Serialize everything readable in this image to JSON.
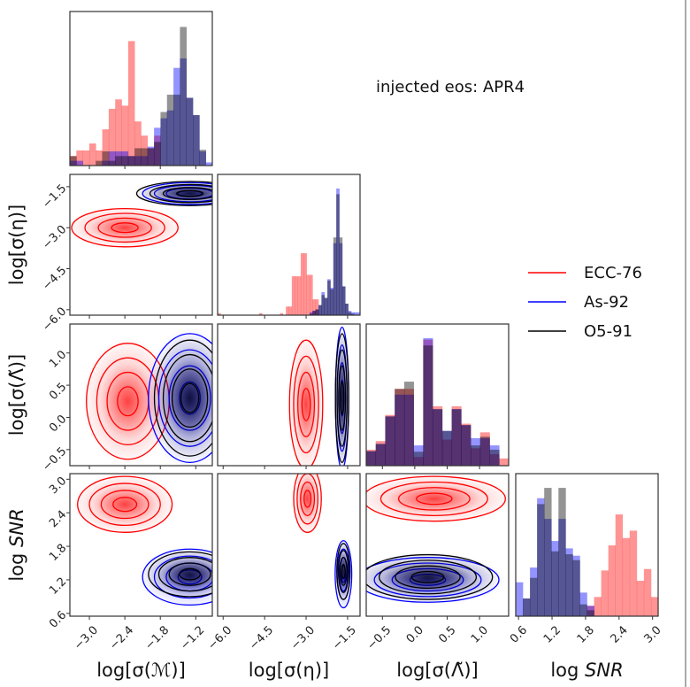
{
  "chart_data": {
    "type": "corner",
    "annotation": "injected eos: APR4",
    "legend": {
      "placement": "right",
      "entries": [
        {
          "name": "ECC-76",
          "color": "#ff0000"
        },
        {
          "name": "As-92",
          "color": "#0000ff"
        },
        {
          "name": "O5-91",
          "color": "#000000"
        }
      ]
    },
    "variables": [
      {
        "key": "M",
        "label": "log[σ(ℳ)]",
        "range": [
          -3.33,
          -0.92
        ],
        "ticks": [
          -3.0,
          -2.4,
          -1.8,
          -1.2
        ],
        "tick_labels": [
          "−3.0",
          "−2.4",
          "−1.8",
          "−1.2"
        ]
      },
      {
        "key": "eta",
        "label": "log[σ(η)]",
        "range": [
          -6.2,
          -1.05
        ],
        "ticks": [
          -6.0,
          -4.5,
          -3.0,
          -1.5
        ],
        "tick_labels": [
          "−6.0",
          "−4.5",
          "−3.0",
          "−1.5"
        ]
      },
      {
        "key": "lam",
        "label": "log[σ(Λ̃)]",
        "range": [
          -0.75,
          1.45
        ],
        "ticks": [
          -0.5,
          0.0,
          0.5,
          1.0
        ],
        "tick_labels": [
          "−0.5",
          "0.0",
          "0.5",
          "1.0"
        ]
      },
      {
        "key": "snr",
        "label_prefix": "log ",
        "label_italic": "SNR",
        "range": [
          0.55,
          3.1
        ],
        "ticks": [
          0.6,
          1.2,
          1.8,
          2.4,
          3.0
        ],
        "tick_labels": [
          "0.6",
          "1.2",
          "1.8",
          "2.4",
          "3.0"
        ]
      }
    ],
    "histograms": {
      "M": {
        "ECC-76": [
          30,
          48,
          48,
          70,
          48,
          115,
          180,
          210,
          190,
          395,
          140,
          95,
          55,
          95,
          0,
          0,
          0,
          0,
          0,
          0,
          0,
          0
        ],
        "As-92": [
          15,
          15,
          0,
          0,
          0,
          15,
          45,
          45,
          45,
          30,
          30,
          30,
          60,
          120,
          150,
          175,
          310,
          340,
          215,
          160,
          45,
          10
        ],
        "O5-91": [
          30,
          0,
          0,
          0,
          15,
          45,
          15,
          30,
          30,
          30,
          55,
          55,
          55,
          75,
          170,
          225,
          225,
          440,
          215,
          160,
          50,
          0
        ]
      },
      "eta": {
        "ECC-76": [
          7,
          0,
          0,
          0,
          0,
          0,
          0,
          0,
          0,
          0,
          0,
          0,
          0,
          0,
          7,
          0,
          0,
          0,
          0,
          0,
          0,
          7,
          0,
          30,
          30,
          135,
          135,
          135,
          215,
          215,
          140,
          140,
          55,
          55,
          0,
          0,
          0,
          0,
          0,
          0,
          0,
          0,
          0,
          0,
          0,
          0,
          0,
          0
        ],
        "As-92": [
          0,
          0,
          0,
          0,
          0,
          0,
          0,
          0,
          0,
          0,
          0,
          0,
          0,
          0,
          0,
          0,
          0,
          0,
          0,
          0,
          0,
          0,
          0,
          0,
          0,
          0,
          0,
          0,
          0,
          0,
          0,
          10,
          15,
          20,
          35,
          80,
          60,
          125,
          95,
          250,
          440,
          250,
          100,
          40,
          15,
          10,
          10,
          10
        ],
        "O5-91": [
          0,
          0,
          0,
          0,
          0,
          0,
          0,
          0,
          0,
          0,
          0,
          0,
          0,
          0,
          0,
          0,
          0,
          0,
          0,
          0,
          0,
          0,
          0,
          0,
          0,
          0,
          0,
          0,
          0,
          0,
          0,
          5,
          15,
          20,
          35,
          70,
          60,
          120,
          90,
          270,
          420,
          270,
          100,
          40,
          10,
          5,
          0,
          0
        ]
      },
      "lam": {
        "ECC-76": [
          55,
          85,
          175,
          265,
          265,
          30,
          435,
          205,
          90,
          205,
          145,
          60,
          115,
          40,
          25
        ],
        "As-92": [
          50,
          75,
          170,
          245,
          245,
          70,
          440,
          195,
          120,
          195,
          140,
          95,
          95,
          70,
          0
        ],
        "O5-91": [
          50,
          75,
          170,
          265,
          290,
          48,
          415,
          195,
          120,
          195,
          140,
          70,
          100,
          55,
          0
        ]
      },
      "snr": {
        "ECC-76": [
          0,
          0,
          0,
          0,
          0,
          0,
          0,
          0,
          0,
          0,
          35,
          65,
          155,
          240,
          345,
          265,
          290,
          120,
          160,
          65
        ],
        "As-92": [
          115,
          60,
          165,
          400,
          330,
          255,
          330,
          230,
          205,
          80,
          35,
          0,
          0,
          0,
          0,
          0,
          0,
          0,
          0,
          0
        ],
        "O5-91": [
          0,
          60,
          130,
          380,
          435,
          220,
          435,
          210,
          190,
          40,
          20,
          0,
          0,
          0,
          0,
          0,
          0,
          0,
          0,
          0
        ]
      }
    },
    "pairs": [
      {
        "x": "M",
        "y": "eta",
        "peaks": {
          "ECC-76": {
            "center": [
              -2.4,
              -3.0
            ],
            "sigma": [
              0.45,
              0.35
            ]
          },
          "As-92": {
            "center": [
              -1.3,
              -1.75
            ],
            "sigma": [
              0.4,
              0.2
            ]
          },
          "O5-91": {
            "center": [
              -1.3,
              -1.75
            ],
            "sigma": [
              0.45,
              0.22
            ]
          }
        }
      },
      {
        "x": "M",
        "y": "lam",
        "peaks": {
          "ECC-76": {
            "center": [
              -2.35,
              0.25
            ],
            "sigma": [
              0.35,
              0.45
            ]
          },
          "As-92": {
            "center": [
              -1.3,
              0.3
            ],
            "sigma": [
              0.35,
              0.5
            ]
          },
          "O5-91": {
            "center": [
              -1.3,
              0.3
            ],
            "sigma": [
              0.3,
              0.45
            ]
          }
        }
      },
      {
        "x": "eta",
        "y": "lam",
        "peaks": {
          "ECC-76": {
            "center": [
              -3.0,
              0.2
            ],
            "sigma": [
              0.3,
              0.5
            ]
          },
          "As-92": {
            "center": [
              -1.7,
              0.3
            ],
            "sigma": [
              0.12,
              0.55
            ]
          },
          "O5-91": {
            "center": [
              -1.7,
              0.3
            ],
            "sigma": [
              0.12,
              0.5
            ]
          }
        }
      },
      {
        "x": "M",
        "y": "snr",
        "peaks": {
          "ECC-76": {
            "center": [
              -2.4,
              2.55
            ],
            "sigma": [
              0.4,
              0.25
            ]
          },
          "As-92": {
            "center": [
              -1.3,
              1.25
            ],
            "sigma": [
              0.4,
              0.25
            ]
          },
          "O5-91": {
            "center": [
              -1.3,
              1.3
            ],
            "sigma": [
              0.35,
              0.2
            ]
          }
        }
      },
      {
        "x": "eta",
        "y": "snr",
        "peaks": {
          "ECC-76": {
            "center": [
              -2.95,
              2.65
            ],
            "sigma": [
              0.25,
              0.3
            ]
          },
          "As-92": {
            "center": [
              -1.65,
              1.3
            ],
            "sigma": [
              0.15,
              0.3
            ]
          },
          "O5-91": {
            "center": [
              -1.65,
              1.35
            ],
            "sigma": [
              0.12,
              0.25
            ]
          }
        }
      },
      {
        "x": "lam",
        "y": "snr",
        "peaks": {
          "ECC-76": {
            "center": [
              0.3,
              2.65
            ],
            "sigma": [
              0.55,
              0.2
            ]
          },
          "As-92": {
            "center": [
              0.2,
              1.2
            ],
            "sigma": [
              0.55,
              0.2
            ]
          },
          "O5-91": {
            "center": [
              0.2,
              1.25
            ],
            "sigma": [
              0.5,
              0.2
            ]
          }
        }
      }
    ],
    "grid": false
  }
}
